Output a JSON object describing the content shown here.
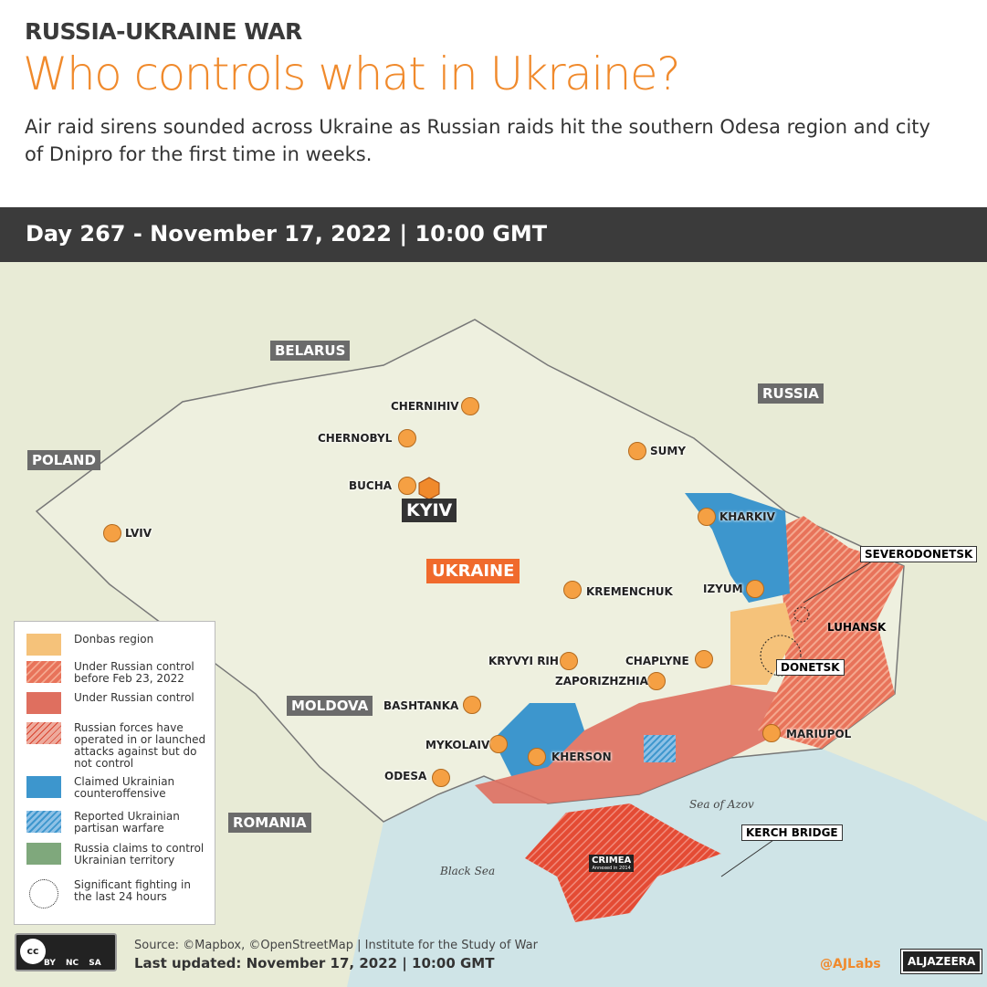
{
  "header": {
    "kicker": "RUSSIA-UKRAINE WAR",
    "title": "Who controls what in Ukraine?",
    "subtitle": "Air raid sirens sounded across Ukraine as Russian raids hit the southern Odesa region and city of Dnipro for the first time in weeks.",
    "dayline": "Day 267 - November 17, 2022 | 10:00 GMT"
  },
  "countries": {
    "belarus": "BELARUS",
    "russia": "RUSSIA",
    "poland": "POLAND",
    "moldova": "MOLDOVA",
    "romania": "ROMANIA",
    "ukraine": "UKRAINE"
  },
  "cities": {
    "chernihiv": "CHERNIHIV",
    "chernobyl": "CHERNOBYL",
    "sumy": "SUMY",
    "bucha": "BUCHA",
    "kyiv": "KYIV",
    "lviv": "LVIV",
    "kharkiv": "KHARKIV",
    "kremenchuk": "KREMENCHUK",
    "izyum": "IZYUM",
    "kryvyi_rih": "KRYVYI RIH",
    "chaplyne": "CHAPLYNE",
    "zaporizhzhia": "ZAPORIZHZHIA",
    "bashtanka": "BASHTANKA",
    "mykolaiv": "MYKOLAIV",
    "kherson": "KHERSON",
    "odesa": "ODESA",
    "mariupol": "MARIUPOL"
  },
  "regions": {
    "severodonetsk": "SEVERODONETSK",
    "luhansk": "LUHANSK",
    "donetsk": "DONETSK",
    "kerch": "KERCH BRIDGE",
    "crimea": "CRIMEA",
    "crimea_note": "Annexed in 2014"
  },
  "seas": {
    "azov": "Sea of Azov",
    "black": "Black Sea"
  },
  "legend": [
    {
      "label": "Donbas region",
      "color": "#f5c27a"
    },
    {
      "label": "Under Russian control before Feb 23, 2022",
      "color": "#e8735a"
    },
    {
      "label": "Under Russian control",
      "color": "#df6f5f"
    },
    {
      "label": "Russian forces have operated in or launched attacks against but do not control",
      "color": "#eeaa9c"
    },
    {
      "label": "Claimed Ukrainian counteroffensive",
      "color": "#3d96cd"
    },
    {
      "label": "Reported Ukrainian partisan warfare",
      "color": "#8ec1e6"
    },
    {
      "label": "Russia claims to control Ukrainian territory",
      "color": "#7fa87c"
    },
    {
      "label": "Significant fighting in the last 24 hours",
      "color": "#ffffff"
    }
  ],
  "footer": {
    "source": "Source: ©Mapbox, ©OpenStreetMap  |  Institute for the Study of War",
    "updated": "Last updated: November 17, 2022  |  10:00 GMT",
    "handle": "@AJLabs",
    "brand": "ALJAZEERA",
    "cc": "BY NC SA"
  }
}
